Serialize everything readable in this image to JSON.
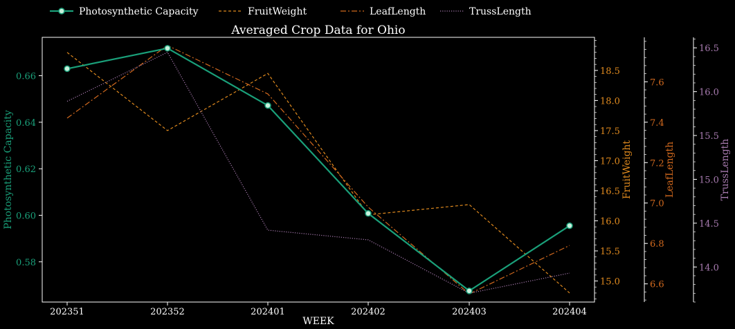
{
  "chart_data": {
    "type": "line",
    "title": "Averaged Crop Data for Ohio",
    "xlabel": "WEEK",
    "x": [
      "202351",
      "202352",
      "202401",
      "202402",
      "202403",
      "202404"
    ],
    "legend_position": "top",
    "grid": false,
    "series": [
      {
        "name": "Photosynthetic Capacity",
        "color": "#1aa07a",
        "style": "solid-markers",
        "axis_label": "Photosynthetic Capacity",
        "ylim": [
          0.5627,
          0.6765
        ],
        "ticks": [
          "0.58",
          "0.60",
          "0.62",
          "0.64",
          "0.66"
        ],
        "values": [
          0.663,
          0.6718,
          0.6472,
          0.6008,
          0.5675,
          0.5955
        ]
      },
      {
        "name": "FruitWeight",
        "color": "#e08a1e",
        "style": "dashed",
        "axis_label": "FruitWeight",
        "ylim": [
          14.65,
          19.05
        ],
        "ticks": [
          "15.0",
          "15.5",
          "16.0",
          "16.5",
          "17.0",
          "17.5",
          "18.0",
          "18.5"
        ],
        "values": [
          18.8,
          17.5,
          18.45,
          16.1,
          16.27,
          14.8
        ]
      },
      {
        "name": "LeafLength",
        "color": "#d2691e",
        "style": "dashdot",
        "axis_label": "LeafLength",
        "ylim": [
          6.51,
          7.82
        ],
        "ticks": [
          "6.6",
          "6.8",
          "7.0",
          "7.2",
          "7.4",
          "7.6"
        ],
        "values": [
          7.42,
          7.78,
          7.54,
          6.98,
          6.55,
          6.79
        ]
      },
      {
        "name": "TrussLength",
        "color": "#a87bb0",
        "style": "dotted",
        "axis_label": "TrussLength",
        "ylim": [
          13.6,
          16.62
        ],
        "ticks": [
          "14.0",
          "14.5",
          "15.0",
          "15.5",
          "16.0",
          "16.5"
        ],
        "values": [
          15.89,
          16.45,
          14.42,
          14.31,
          13.7,
          13.93
        ]
      }
    ]
  }
}
